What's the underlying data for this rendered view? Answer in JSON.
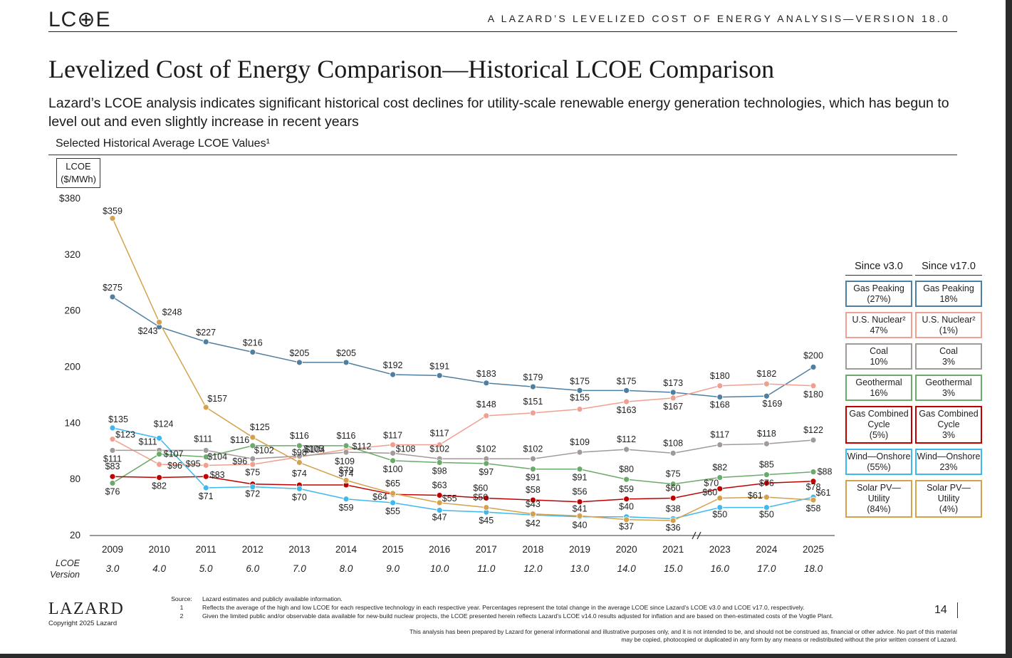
{
  "header": {
    "logo": "LC⊕E",
    "report_title": "A    LAZARD’S LEVELIZED COST OF ENERGY ANALYSIS—VERSION 18.0"
  },
  "title": "Levelized Cost of Energy Comparison—Historical LCOE Comparison",
  "subtitle": "Lazard’s LCOE analysis indicates significant historical cost declines for utility-scale renewable energy generation technologies, which has begun to level out and even slightly increase in recent years",
  "section_label": "Selected Historical Average LCOE Values¹",
  "unit_label_line1": "LCOE",
  "unit_label_line2": "($/MWh)",
  "version_label_line1": "LCOE",
  "version_label_line2": "Version",
  "legend": {
    "header_v3": "Since v3.0",
    "header_v17": "Since v17.0",
    "items": [
      {
        "name_v3": "Gas Peaking",
        "pct_v3": "(27%)",
        "name_v17": "Gas Peaking",
        "pct_v17": "18%",
        "color": "#4f7fa0"
      },
      {
        "name_v3": "U.S. Nuclear²",
        "pct_v3": "47%",
        "name_v17": "U.S. Nuclear²",
        "pct_v17": "(1%)",
        "color": "#f0a090"
      },
      {
        "name_v3": "Coal",
        "pct_v3": "10%",
        "name_v17": "Coal",
        "pct_v17": "3%",
        "color": "#a09a98"
      },
      {
        "name_v3": "Geothermal",
        "pct_v3": "16%",
        "name_v17": "Geothermal",
        "pct_v17": "3%",
        "color": "#6aaa6a"
      },
      {
        "name_v3": "Gas Combined Cycle",
        "pct_v3": "(5%)",
        "name_v17": "Gas Combined Cycle",
        "pct_v17": "3%",
        "color": "#c00000"
      },
      {
        "name_v3": "Wind—Onshore",
        "pct_v3": "(55%)",
        "name_v17": "Wind—Onshore",
        "pct_v17": "23%",
        "color": "#3fb8ee"
      },
      {
        "name_v3": "Solar PV—Utility",
        "pct_v3": "(84%)",
        "name_v17": "Solar PV—Utility",
        "pct_v17": "(4%)",
        "color": "#d4a24c"
      }
    ]
  },
  "chart_data": {
    "type": "line",
    "ylabel": "LCOE ($/MWh)",
    "ylim": [
      20,
      380
    ],
    "yticks": [
      "$380",
      "320",
      "260",
      "200",
      "140",
      "80",
      "20"
    ],
    "categories": [
      "2009",
      "2010",
      "2011",
      "2012",
      "2013",
      "2014",
      "2015",
      "2016",
      "2017",
      "2018",
      "2019",
      "2020",
      "2021",
      "2023",
      "2024",
      "2025"
    ],
    "versions": [
      "3.0",
      "4.0",
      "5.0",
      "6.0",
      "7.0",
      "8.0",
      "9.0",
      "10.0",
      "11.0",
      "12.0",
      "13.0",
      "14.0",
      "15.0",
      "16.0",
      "17.0",
      "18.0"
    ],
    "axis_break_between": [
      "2021",
      "2023"
    ],
    "series": [
      {
        "name": "Gas Peaking",
        "color": "#4f7fa0",
        "values": [
          275,
          243,
          227,
          216,
          205,
          205,
          192,
          191,
          183,
          179,
          175,
          175,
          173,
          168,
          169,
          200
        ],
        "labels": [
          "$275",
          "$243",
          "$227",
          "$216",
          "$205",
          "$205",
          "$192",
          "$191",
          "$183",
          "$179",
          "$175",
          "$175",
          "$173",
          "$168",
          "$169",
          "$200"
        ]
      },
      {
        "name": "U.S. Nuclear",
        "color": "#f0a090",
        "values": [
          123,
          96,
          95,
          96,
          104,
          112,
          117,
          117,
          148,
          151,
          155,
          163,
          167,
          180,
          182,
          180
        ],
        "labels": [
          "$123",
          "$96",
          "$95",
          "$96",
          "$104",
          "$112",
          "$117",
          "$117",
          "$148",
          "$151",
          "$155",
          "$163",
          "$167",
          "$180",
          "$182",
          "$180"
        ]
      },
      {
        "name": "Coal",
        "color": "#a09a98",
        "values": [
          111,
          111,
          111,
          102,
          105,
          109,
          108,
          102,
          102,
          102,
          109,
          112,
          108,
          117,
          118,
          122
        ],
        "labels": [
          "$111",
          "$111",
          "$111",
          "$102",
          "$105",
          "$109",
          "$108",
          "$102",
          "$102",
          "$102",
          "$109",
          "$112",
          "$108",
          "$117",
          "$118",
          "$122"
        ]
      },
      {
        "name": "Geothermal",
        "color": "#6aaa6a",
        "values": [
          76,
          107,
          104,
          116,
          116,
          116,
          100,
          98,
          97,
          91,
          91,
          80,
          75,
          82,
          85,
          88
        ],
        "labels": [
          "$76",
          "$107",
          "$104",
          "$116",
          "$116",
          "$116",
          "$100",
          "$98",
          "$97",
          "$91",
          "$91",
          "$80",
          "$75",
          "$82",
          "$85",
          "$88"
        ]
      },
      {
        "name": "Gas Combined Cycle",
        "color": "#c00000",
        "values": [
          83,
          82,
          83,
          75,
          74,
          74,
          64,
          63,
          60,
          58,
          56,
          59,
          60,
          70,
          76,
          78
        ],
        "labels": [
          "$83",
          "$82",
          "$83",
          "$75",
          "$74",
          "$74",
          "$64",
          "$63",
          "$60",
          "$58",
          "$56",
          "$59",
          "$60",
          "$70",
          "$76",
          "$78"
        ]
      },
      {
        "name": "Wind—Onshore",
        "color": "#3fb8ee",
        "values": [
          135,
          124,
          71,
          72,
          70,
          59,
          55,
          47,
          45,
          42,
          40,
          40,
          38,
          50,
          50,
          61
        ],
        "labels": [
          "$135",
          "$124",
          "$71",
          "$72",
          "$70",
          "$59",
          "$55",
          "$47",
          "$45",
          "$42",
          "$40",
          "$40",
          "$38",
          "$50",
          "$50",
          "$61"
        ]
      },
      {
        "name": "Solar PV—Utility",
        "color": "#d4a24c",
        "values": [
          359,
          248,
          157,
          125,
          98,
          79,
          65,
          55,
          50,
          43,
          41,
          37,
          36,
          60,
          61,
          58
        ],
        "labels": [
          "$359",
          "$248",
          "$157",
          "$125",
          "$98",
          "$79",
          "$65",
          "$55",
          "$50",
          "$43",
          "$41",
          "$37",
          "$36",
          "$60",
          "$61",
          "$58"
        ]
      }
    ]
  },
  "footer": {
    "brand": "LAZARD",
    "copyright": "Copyright 2025 Lazard",
    "notes": [
      {
        "key": "Source:",
        "text": "Lazard estimates and publicly available information."
      },
      {
        "key": "1",
        "text": "Reflects the average of the high and low LCOE for each respective technology in each respective year. Percentages represent the total change in the average LCOE since Lazard’s LCOE v3.0 and LCOE v17.0, respectively."
      },
      {
        "key": "2",
        "text": "Given the limited public and/or observable data available for new-build nuclear projects, the LCOE presented herein reflects Lazard’s LCOE v14.0 results adjusted for inflation and are based on then-estimated costs of the Vogtle Plant."
      }
    ],
    "page_number": "14",
    "disclaimer": "This analysis has been prepared by Lazard for general informational and illustrative purposes only, and it is not intended to be, and should not be construed as, financial or other advice. No part of this material may be copied, photocopied or duplicated in any form by any means or redistributed without the prior written consent of Lazard."
  }
}
